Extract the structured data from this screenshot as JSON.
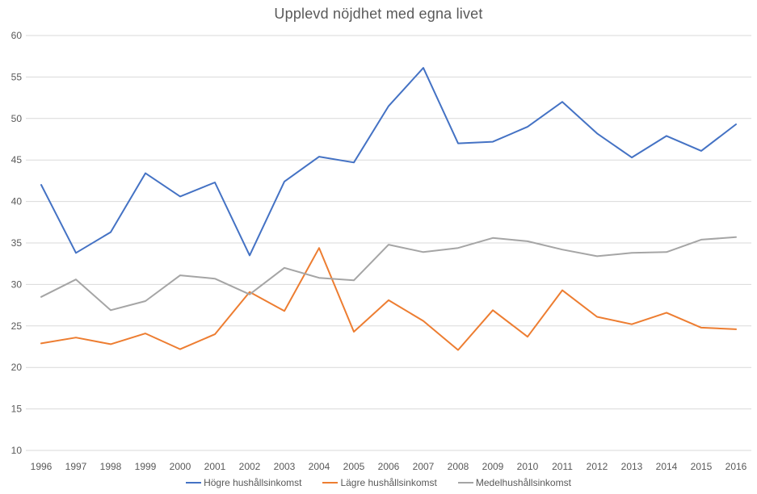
{
  "title": "Upplevd nöjdhet med egna livet",
  "colors": {
    "hogre": "#4472C4",
    "lagre": "#ED7D31",
    "medel": "#A5A5A5",
    "gridline": "#D9D9D9",
    "axis_text": "#595959",
    "title_text": "#595959",
    "background": "#FFFFFF"
  },
  "legend": {
    "items": [
      {
        "label": "Högre hushållsinkomst",
        "color": "#4472C4"
      },
      {
        "label": "Lägre hushållsinkomst",
        "color": "#ED7D31"
      },
      {
        "label": "Medelhushållsinkomst",
        "color": "#A5A5A5"
      }
    ]
  },
  "chart_data": {
    "type": "line",
    "title": "Upplevd nöjdhet med egna livet",
    "xlabel": "",
    "ylabel": "",
    "x": [
      1996,
      1997,
      1998,
      1999,
      2000,
      2001,
      2002,
      2003,
      2004,
      2005,
      2006,
      2007,
      2008,
      2009,
      2010,
      2011,
      2012,
      2013,
      2014,
      2015,
      2016
    ],
    "series": [
      {
        "name": "Högre hushållsinkomst",
        "color": "#4472C4",
        "values": [
          42.0,
          33.8,
          36.3,
          43.4,
          40.6,
          42.3,
          33.5,
          42.4,
          45.4,
          44.7,
          51.5,
          56.1,
          47.0,
          47.2,
          49.0,
          52.0,
          48.2,
          45.3,
          47.9,
          46.1,
          49.3
        ]
      },
      {
        "name": "Lägre hushållsinkomst",
        "color": "#ED7D31",
        "values": [
          22.9,
          23.6,
          22.8,
          24.1,
          22.2,
          24.0,
          29.1,
          26.8,
          34.4,
          24.3,
          28.1,
          25.6,
          22.1,
          26.9,
          23.7,
          29.3,
          26.1,
          25.2,
          26.6,
          24.8,
          24.6
        ]
      },
      {
        "name": "Medelhushållsinkomst",
        "color": "#A5A5A5",
        "values": [
          28.5,
          30.6,
          26.9,
          28.0,
          31.1,
          30.7,
          28.8,
          32.0,
          30.8,
          30.5,
          34.8,
          33.9,
          34.4,
          35.6,
          35.2,
          34.2,
          33.4,
          33.8,
          33.9,
          35.4,
          35.7
        ]
      }
    ],
    "ylim": [
      10,
      60
    ],
    "y_ticks": [
      10,
      15,
      20,
      25,
      30,
      35,
      40,
      45,
      50,
      55,
      60
    ],
    "grid": "horizontal",
    "legend_position": "bottom"
  }
}
